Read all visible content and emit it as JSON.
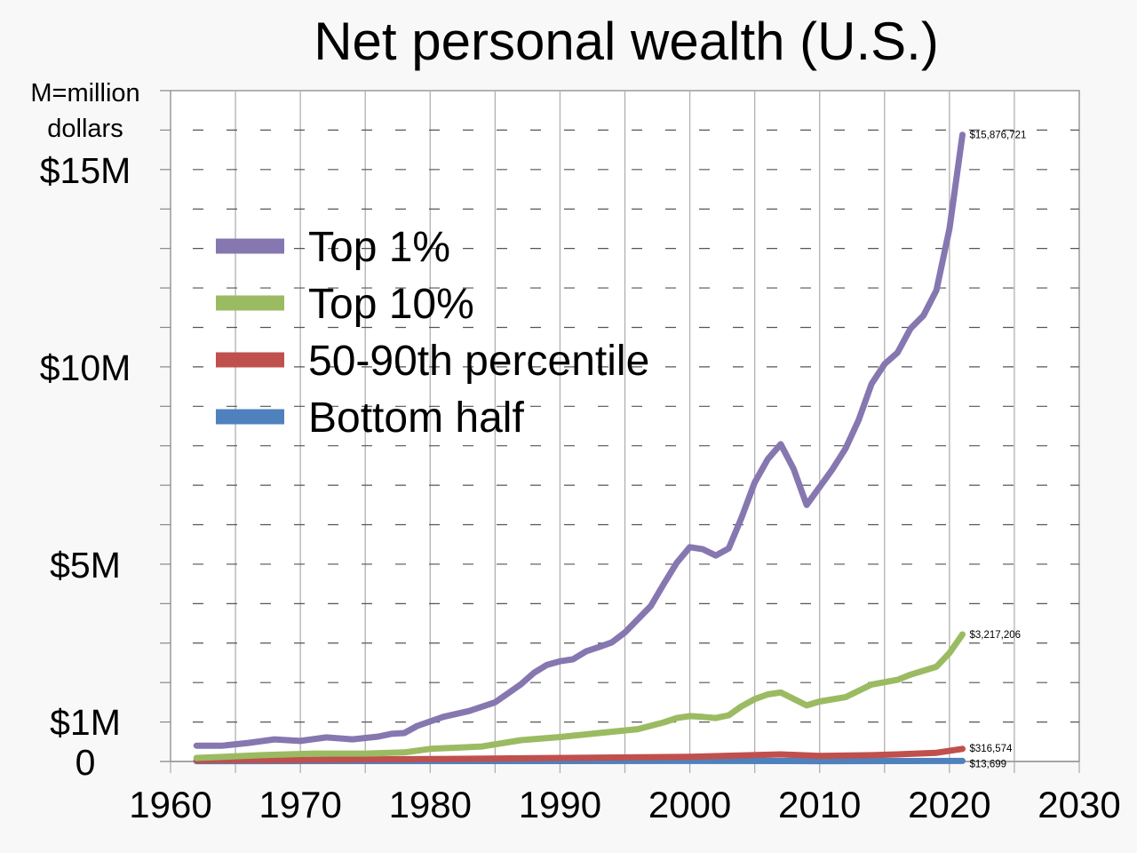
{
  "chart_data": {
    "type": "line",
    "title": "Net personal wealth (U.S.)",
    "ylabel": "M=million dollars",
    "ylabel_lines": [
      "M=million",
      "dollars"
    ],
    "xlabel": "",
    "xlim": [
      1960,
      2030
    ],
    "ylim": [
      0,
      17
    ],
    "x_ticks": [
      1960,
      1970,
      1980,
      1990,
      2000,
      2010,
      2020,
      2030
    ],
    "x_tick_labels": [
      "1960",
      "1970",
      "1980",
      "1990",
      "2000",
      "2010",
      "2020",
      "2030"
    ],
    "y_ticks": [
      0,
      1,
      5,
      10,
      15
    ],
    "y_tick_labels": [
      "0",
      "$1M",
      "$5M",
      "$10M",
      "$15M"
    ],
    "grid": "vertical solid every 5 years; horizontal dashed every $1M",
    "legend_position": "top-left",
    "series": [
      {
        "name": "Top 1%",
        "color": "#8677b0",
        "end_label": "$15,876,721",
        "x": [
          1962,
          1964,
          1966,
          1968,
          1970,
          1972,
          1974,
          1976,
          1977,
          1978,
          1979,
          1981,
          1983,
          1985,
          1986,
          1987,
          1988,
          1989,
          1990,
          1991,
          1992,
          1993,
          1994,
          1995,
          1997,
          1998,
          1999,
          2000,
          2001,
          2002,
          2003,
          2004,
          2005,
          2006,
          2007,
          2008,
          2009,
          2011,
          2012,
          2013,
          2014,
          2015,
          2016,
          2017,
          2018,
          2019,
          2020,
          2021
        ],
        "y": [
          0.4,
          0.4,
          0.47,
          0.56,
          0.52,
          0.61,
          0.56,
          0.63,
          0.7,
          0.72,
          0.9,
          1.13,
          1.28,
          1.5,
          1.73,
          1.96,
          2.25,
          2.45,
          2.54,
          2.59,
          2.79,
          2.9,
          3.02,
          3.27,
          3.94,
          4.5,
          5.04,
          5.43,
          5.38,
          5.22,
          5.4,
          6.19,
          7.07,
          7.66,
          8.04,
          7.41,
          6.5,
          7.41,
          7.93,
          8.65,
          9.57,
          10.07,
          10.36,
          10.97,
          11.3,
          11.94,
          13.5,
          15.88
        ]
      },
      {
        "name": "Top 10%",
        "color": "#9bbb62",
        "end_label": "$3,217,206",
        "x": [
          1962,
          1967,
          1971,
          1975,
          1978,
          1980,
          1984,
          1987,
          1990,
          1993,
          1996,
          1998,
          1999,
          2000,
          2001,
          2002,
          2003,
          2004,
          2005,
          2006,
          2007,
          2009,
          2010,
          2012,
          2014,
          2016,
          2017,
          2019,
          2020,
          2021
        ],
        "y": [
          0.09,
          0.16,
          0.2,
          0.2,
          0.23,
          0.32,
          0.38,
          0.54,
          0.62,
          0.72,
          0.82,
          0.99,
          1.1,
          1.15,
          1.13,
          1.1,
          1.17,
          1.4,
          1.58,
          1.7,
          1.75,
          1.42,
          1.52,
          1.63,
          1.95,
          2.07,
          2.2,
          2.4,
          2.75,
          3.22
        ]
      },
      {
        "name": "50-90th percentile",
        "color": "#c0504d",
        "end_label": "$316,574",
        "x": [
          1962,
          1970,
          1980,
          1990,
          2000,
          2007,
          2010,
          2014,
          2016,
          2019,
          2021
        ],
        "y": [
          0.03,
          0.04,
          0.06,
          0.09,
          0.12,
          0.18,
          0.14,
          0.16,
          0.18,
          0.22,
          0.32
        ]
      },
      {
        "name": "Bottom half",
        "color": "#4f81bd",
        "end_label": "$13,699",
        "x": [
          1962,
          1980,
          2000,
          2010,
          2021
        ],
        "y": [
          0.01,
          0.012,
          0.014,
          0.01,
          0.0137
        ]
      }
    ]
  }
}
